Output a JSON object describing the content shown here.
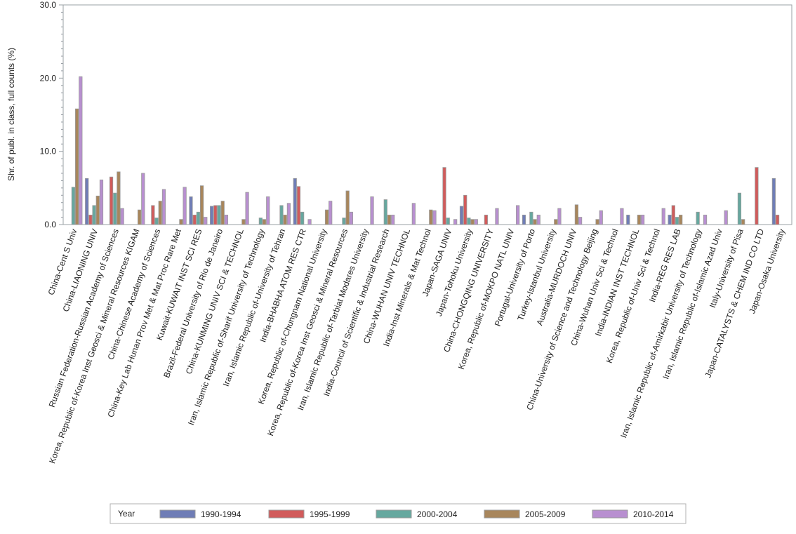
{
  "chart_data": {
    "type": "bar",
    "title": "",
    "xlabel": "",
    "ylabel": "Shr. of publ. in class, full counts (%)",
    "ylim": [
      0,
      30
    ],
    "yticks": [
      "0.0",
      "10.0",
      "20.0",
      "30.0"
    ],
    "yticks_values": [
      0,
      10,
      20,
      30
    ],
    "grid": false,
    "legend": {
      "title": "Year",
      "placement": "bottom"
    },
    "categories": [
      "China-Cent S Univ",
      "China-LIAONING UNIV",
      "Russian Federation-Russian Academy of Sciences",
      "Korea, Republic of-Korea Inst Geosci & Mineral Resources KIGAM",
      "China-Chinese Academy of Sciences",
      "China-Key Lab Hunan Prov Met & Mat Proc Rare Met",
      "Kuwait-KUWAIT INST SCI RES",
      "Brazil-Federal University of Rio de Janeiro",
      "China-KUNMING UNIV SCI & TECHNOL",
      "Iran, Islamic Republic of-Sharif University of Technology",
      "Iran, Islamic Republic of-University of Tehran",
      "India-BHABHA ATOM RES CTR",
      "Korea, Republic of-Chungnam National University",
      "Korea, Republic of-Korea Inst Geosci & Mineral Resources",
      "Iran, Islamic Republic of-Tarbiat Modares University",
      "India-Council of Scientific & Industrial Research",
      "China-WUHAN UNIV TECHNOL",
      "India-Inst Minerals & Mat Technol",
      "Japan-SAGA UNIV",
      "Japan-Tohoku University",
      "China-CHONGQING UNIVERSITY",
      "Korea, Republic of-MOKPO NATL UNIV",
      "Portugal-University of Porto",
      "Turkey-Istanbul University",
      "Australia-MURDOCH UNIV",
      "China-University of Science and Technology Beijing",
      "China-Wuhan Univ Sci & Technol",
      "India-INDIAN INST TECHNOL",
      "Korea, Republic of-Univ Sci & Technol",
      "India-REG RES LAB",
      "Iran, Islamic Republic of-Amirkabir University of Technology",
      "Iran, Islamic Republic of-Islamic Azad Univ",
      "Italy-University of Pisa",
      "Japan-CATALYSTS & CHEM IND CO LTD",
      "Japan-Osaka University"
    ],
    "series": [
      {
        "name": "1990-1994",
        "color": "#6f7db6",
        "values": [
          0,
          6.3,
          0,
          0,
          0,
          0,
          3.8,
          2.5,
          0,
          0,
          0,
          6.3,
          0,
          0,
          0,
          0,
          0,
          0,
          0,
          2.5,
          0,
          0,
          1.3,
          0,
          0,
          0,
          0,
          1.3,
          0,
          1.3,
          0,
          0,
          0,
          0,
          6.3
        ]
      },
      {
        "name": "1995-1999",
        "color": "#d15b5b",
        "values": [
          0,
          1.3,
          6.5,
          0,
          2.6,
          0,
          1.3,
          2.6,
          0,
          0,
          0,
          5.2,
          0,
          0,
          0,
          0,
          0,
          0,
          7.8,
          4.0,
          1.3,
          0,
          0,
          0,
          0,
          0,
          0,
          0,
          0,
          2.6,
          0,
          0,
          0,
          7.8,
          1.3
        ]
      },
      {
        "name": "2000-2004",
        "color": "#66a89f",
        "values": [
          5.1,
          2.6,
          4.3,
          0,
          0.9,
          0,
          1.7,
          2.6,
          0,
          0.9,
          2.6,
          1.7,
          0,
          0.9,
          0,
          3.4,
          0,
          0,
          0.9,
          0.9,
          0,
          0,
          1.7,
          0,
          0,
          0,
          0,
          0,
          0,
          1.0,
          1.7,
          0,
          4.3,
          0,
          0
        ]
      },
      {
        "name": "2005-2009",
        "color": "#a8865c",
        "values": [
          15.8,
          3.9,
          7.2,
          2.0,
          3.2,
          0.7,
          5.3,
          3.2,
          0.7,
          0.7,
          1.3,
          0,
          2.0,
          4.6,
          0,
          1.3,
          0,
          2.0,
          0,
          0.7,
          0,
          0,
          0.7,
          0.7,
          2.7,
          0.7,
          0,
          1.3,
          0,
          1.3,
          0,
          0,
          0.7,
          0,
          0
        ]
      },
      {
        "name": "2010-2014",
        "color": "#b88fd0",
        "values": [
          20.2,
          6.1,
          2.2,
          7.0,
          4.8,
          5.1,
          1.0,
          1.3,
          4.4,
          3.8,
          2.9,
          0.7,
          3.2,
          1.7,
          3.8,
          1.3,
          2.9,
          1.9,
          0.7,
          0.7,
          2.2,
          2.6,
          1.3,
          2.2,
          1.0,
          1.9,
          2.2,
          1.3,
          2.2,
          0,
          1.3,
          1.9,
          0,
          0,
          0
        ]
      }
    ]
  }
}
